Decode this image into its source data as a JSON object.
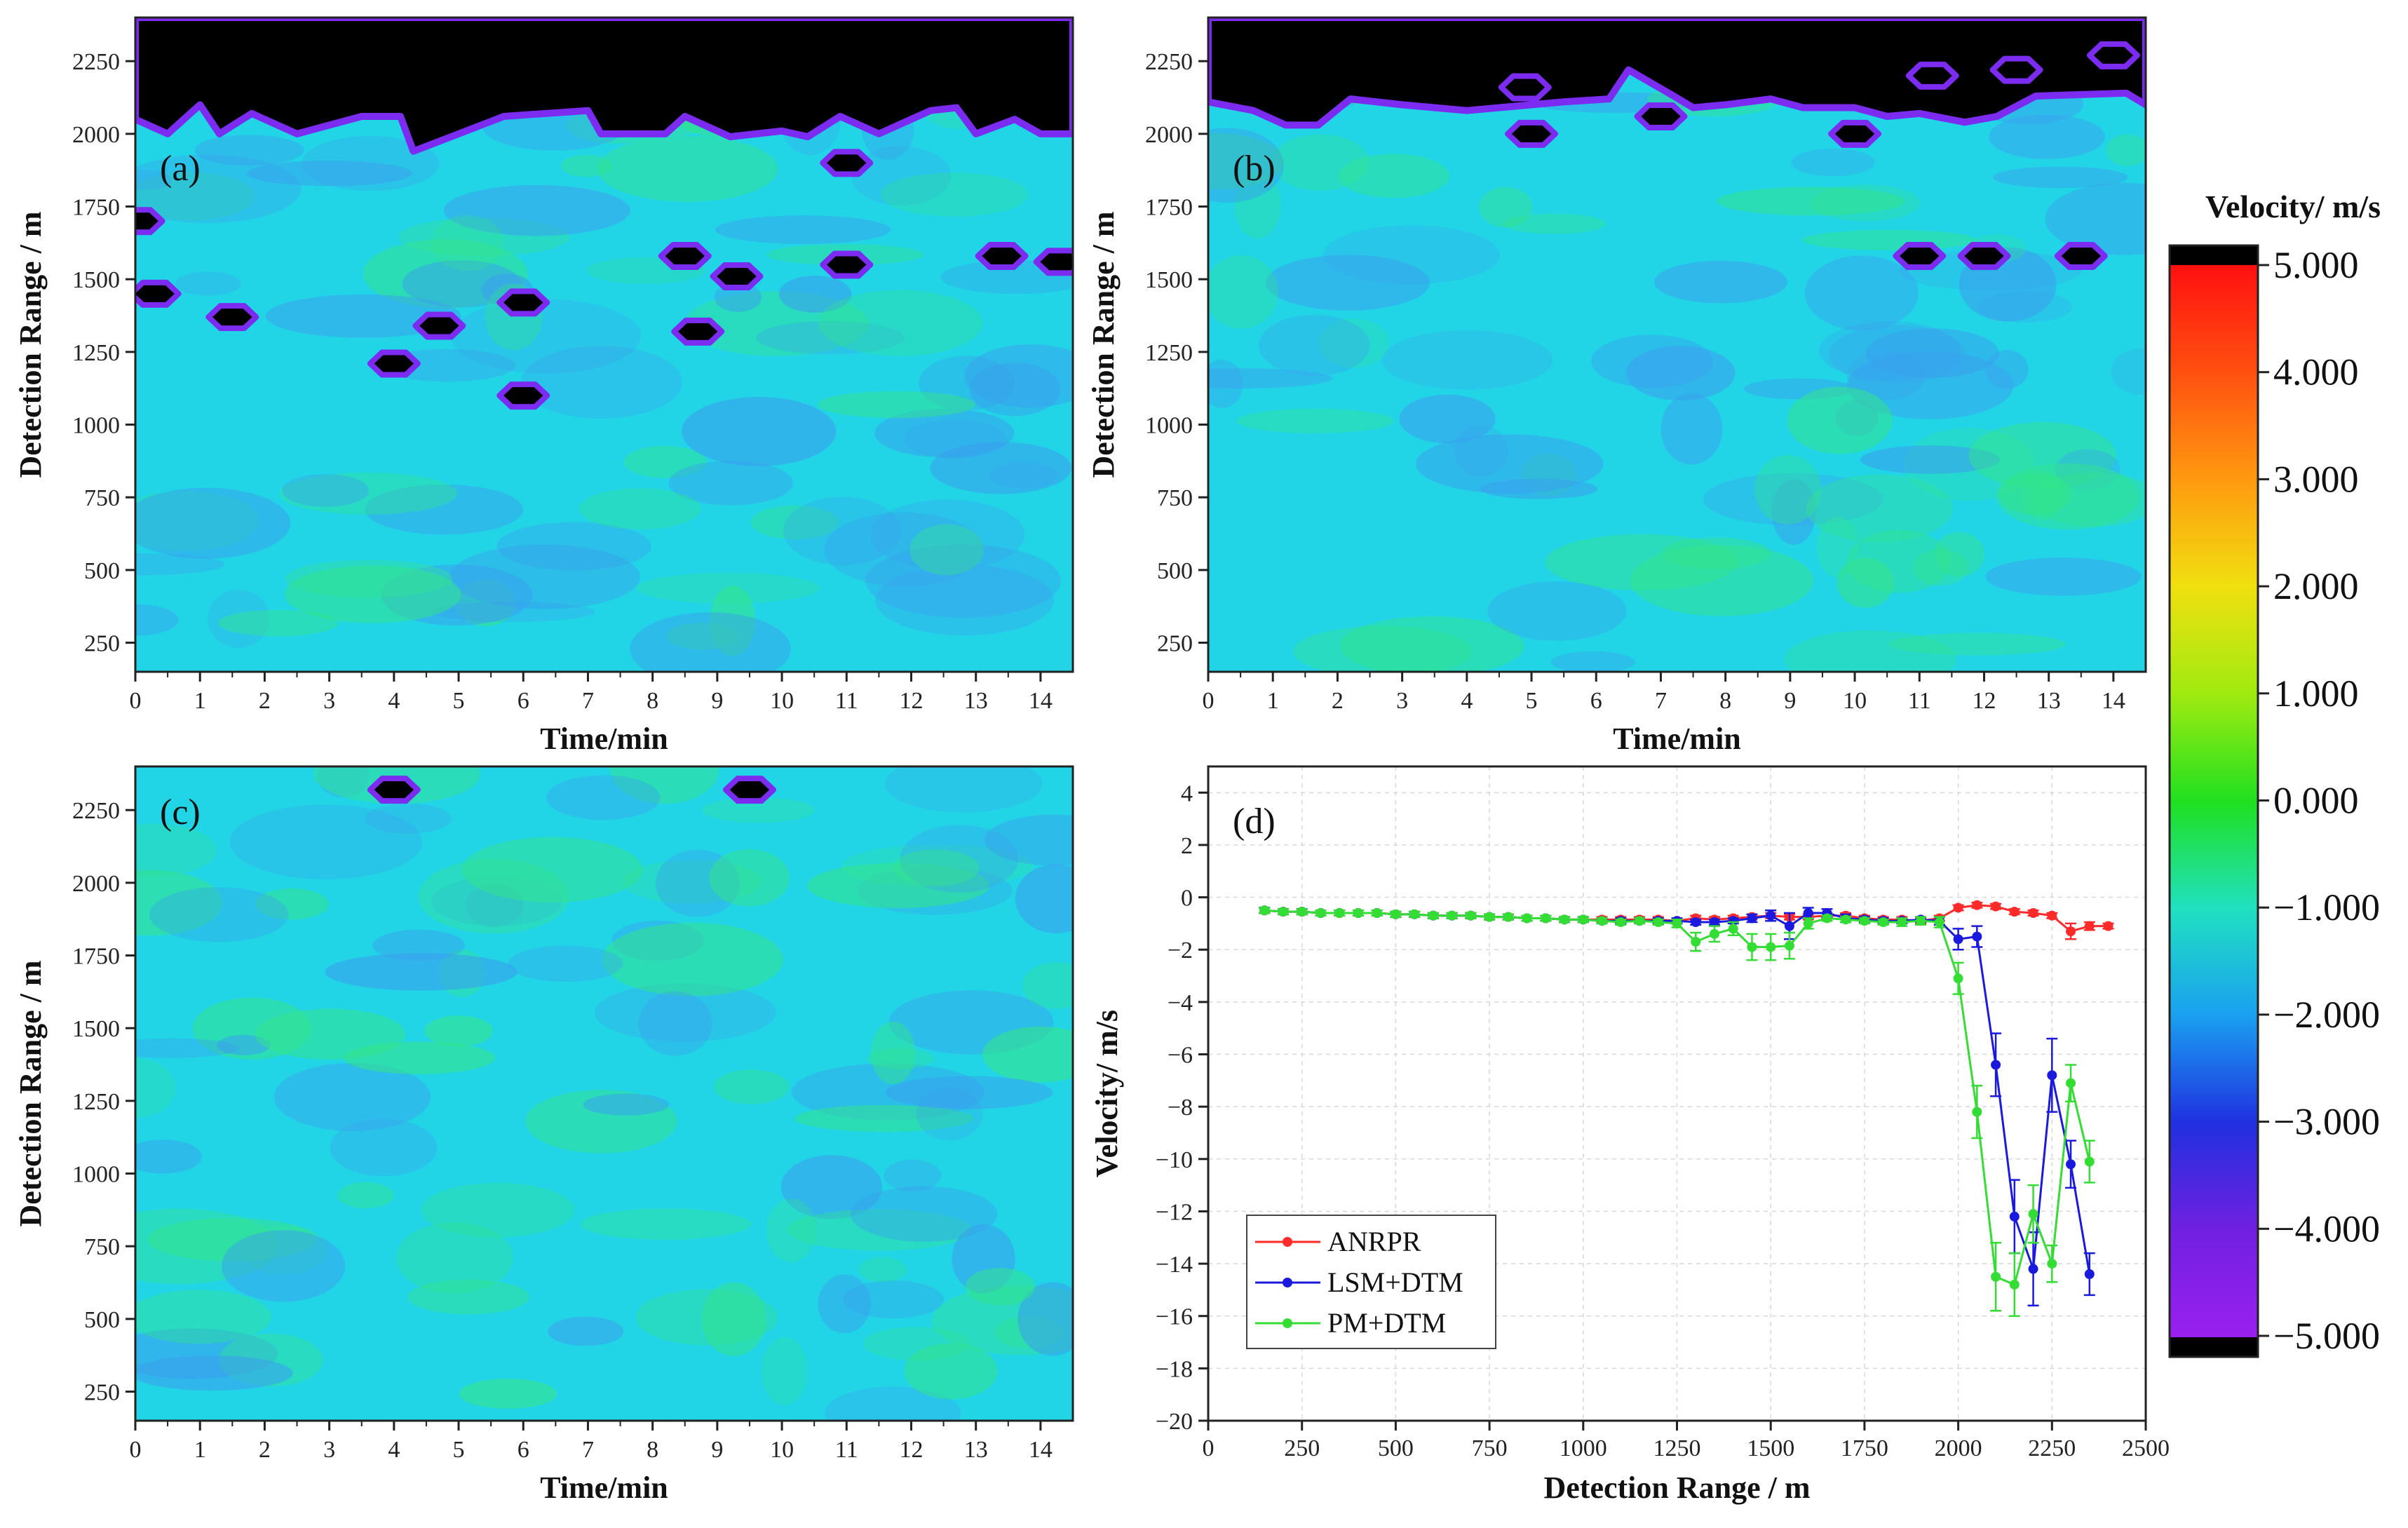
{
  "colors": {
    "void": "#000000",
    "void_edge": "#7b2cf0",
    "field_base": "#22d5e6",
    "field_green": "#33e48a",
    "field_blue": "#3aa0ee",
    "anrpr": "#ff2a2a",
    "lsm": "#1a1adf",
    "pm": "#33dd33",
    "grid": "#d8d8d8"
  },
  "chart_data": [
    {
      "type": "heatmap",
      "panel": "(a)",
      "xlabel": "Time/min",
      "ylabel": "Detection Range / m",
      "xlim": [
        0,
        14.5
      ],
      "ylim": [
        150,
        2400
      ],
      "xticks": [
        "0",
        "1",
        "2",
        "3",
        "4",
        "5",
        "6",
        "7",
        "8",
        "9",
        "10",
        "11",
        "12",
        "13",
        "14"
      ],
      "yticks": [
        "250",
        "500",
        "750",
        "1000",
        "1250",
        "1500",
        "1750",
        "2000",
        "2250"
      ],
      "top_void_boundary": [
        [
          0,
          2050
        ],
        [
          0.5,
          2000
        ],
        [
          1,
          2100
        ],
        [
          1.3,
          2000
        ],
        [
          1.8,
          2070
        ],
        [
          2.5,
          2000
        ],
        [
          3.5,
          2060
        ],
        [
          4.1,
          2060
        ],
        [
          4.3,
          1940
        ],
        [
          5,
          2000
        ],
        [
          5.7,
          2060
        ],
        [
          7,
          2080
        ],
        [
          7.2,
          2000
        ],
        [
          7.7,
          2000
        ],
        [
          8.2,
          2000
        ],
        [
          8.5,
          2060
        ],
        [
          9.2,
          1990
        ],
        [
          10,
          2010
        ],
        [
          10.4,
          1990
        ],
        [
          10.9,
          2060
        ],
        [
          11.5,
          2000
        ],
        [
          12.3,
          2080
        ],
        [
          12.7,
          2090
        ],
        [
          13,
          2000
        ],
        [
          13.6,
          2050
        ],
        [
          14,
          2000
        ],
        [
          14.5,
          2000
        ]
      ],
      "void_patches": [
        [
          0.05,
          1700
        ],
        [
          0.3,
          1450
        ],
        [
          1.5,
          1370
        ],
        [
          4,
          1210
        ],
        [
          4.7,
          1340
        ],
        [
          6,
          1420
        ],
        [
          6,
          1100
        ],
        [
          8.5,
          1580
        ],
        [
          9.3,
          1510
        ],
        [
          8.7,
          1320
        ],
        [
          11,
          1900
        ],
        [
          11,
          1550
        ],
        [
          13.4,
          1580
        ],
        [
          14.3,
          1560
        ]
      ]
    },
    {
      "type": "heatmap",
      "panel": "(b)",
      "xlabel": "Time/min",
      "ylabel": "Detection Range / m",
      "xlim": [
        0,
        14.5
      ],
      "ylim": [
        150,
        2400
      ],
      "xticks": [
        "0",
        "1",
        "2",
        "3",
        "4",
        "5",
        "6",
        "7",
        "8",
        "9",
        "10",
        "11",
        "12",
        "13",
        "14"
      ],
      "yticks": [
        "250",
        "500",
        "750",
        "1000",
        "1250",
        "1500",
        "1750",
        "2000",
        "2250"
      ],
      "top_void_boundary": [
        [
          0,
          2110
        ],
        [
          0.7,
          2080
        ],
        [
          1.2,
          2030
        ],
        [
          1.7,
          2030
        ],
        [
          2.2,
          2120
        ],
        [
          3,
          2100
        ],
        [
          4,
          2080
        ],
        [
          5,
          2100
        ],
        [
          5.5,
          2110
        ],
        [
          6.2,
          2120
        ],
        [
          6.5,
          2220
        ],
        [
          7.2,
          2130
        ],
        [
          7.5,
          2090
        ],
        [
          8,
          2100
        ],
        [
          8.7,
          2120
        ],
        [
          9.2,
          2090
        ],
        [
          10,
          2090
        ],
        [
          10.5,
          2060
        ],
        [
          11,
          2070
        ],
        [
          11.7,
          2040
        ],
        [
          12.2,
          2060
        ],
        [
          12.8,
          2130
        ],
        [
          14.2,
          2140
        ],
        [
          14.5,
          2100
        ]
      ],
      "void_patches": [
        [
          5,
          2000
        ],
        [
          4.9,
          2160
        ],
        [
          7,
          2060
        ],
        [
          10,
          2000
        ],
        [
          11,
          1580
        ],
        [
          12,
          1580
        ],
        [
          13.5,
          1580
        ],
        [
          11.2,
          2200
        ],
        [
          12.5,
          2220
        ],
        [
          14,
          2270
        ]
      ]
    },
    {
      "type": "heatmap",
      "panel": "(c)",
      "xlabel": "Time/min",
      "ylabel": "Detection Range / m",
      "xlim": [
        0,
        14.5
      ],
      "ylim": [
        150,
        2400
      ],
      "xticks": [
        "0",
        "1",
        "2",
        "3",
        "4",
        "5",
        "6",
        "7",
        "8",
        "9",
        "10",
        "11",
        "12",
        "13",
        "14"
      ],
      "yticks": [
        "250",
        "500",
        "750",
        "1000",
        "1250",
        "1500",
        "1750",
        "2000",
        "2250"
      ],
      "top_void_boundary": [],
      "void_patches": [
        [
          4,
          2320
        ],
        [
          9.5,
          2320
        ]
      ]
    },
    {
      "type": "line",
      "panel": "(d)",
      "xlabel": "Detection Range / m",
      "ylabel": "Velocity/ m/s",
      "xlim": [
        0,
        2500
      ],
      "ylim": [
        -20,
        5
      ],
      "xticks": [
        "0",
        "250",
        "500",
        "750",
        "1000",
        "1250",
        "1500",
        "1750",
        "2000",
        "2250",
        "2500"
      ],
      "yticks": [
        "4",
        "2",
        "0",
        "−2",
        "−4",
        "−6",
        "−8",
        "−10",
        "−12",
        "−14",
        "−16",
        "−18",
        "−20"
      ],
      "x": [
        150,
        200,
        250,
        300,
        350,
        400,
        450,
        500,
        550,
        600,
        650,
        700,
        750,
        800,
        850,
        900,
        950,
        1000,
        1050,
        1100,
        1150,
        1200,
        1250,
        1300,
        1350,
        1400,
        1450,
        1500,
        1550,
        1600,
        1650,
        1700,
        1750,
        1800,
        1850,
        1900,
        1950,
        2000,
        2050,
        2100,
        2150,
        2200,
        2250,
        2300,
        2350,
        2400
      ],
      "series": [
        {
          "name": "ANRPR",
          "color": "#ff2a2a",
          "x": [
            150,
            200,
            250,
            300,
            350,
            400,
            450,
            500,
            550,
            600,
            650,
            700,
            750,
            800,
            850,
            900,
            950,
            1000,
            1050,
            1100,
            1150,
            1200,
            1250,
            1300,
            1350,
            1400,
            1450,
            1500,
            1550,
            1600,
            1650,
            1700,
            1750,
            1800,
            1850,
            1900,
            1950,
            2000,
            2050,
            2100,
            2150,
            2200,
            2250,
            2300,
            2350,
            2400
          ],
          "values": [
            -0.5,
            -0.55,
            -0.55,
            -0.6,
            -0.6,
            -0.6,
            -0.6,
            -0.65,
            -0.65,
            -0.7,
            -0.7,
            -0.7,
            -0.75,
            -0.75,
            -0.8,
            -0.8,
            -0.85,
            -0.85,
            -0.85,
            -0.85,
            -0.85,
            -0.85,
            -0.9,
            -0.8,
            -0.85,
            -0.8,
            -0.75,
            -0.7,
            -0.75,
            -0.75,
            -0.7,
            -0.7,
            -0.8,
            -0.85,
            -0.85,
            -0.9,
            -0.8,
            -0.4,
            -0.3,
            -0.35,
            -0.55,
            -0.6,
            -0.7,
            -1.3,
            -1.1,
            -1.1
          ],
          "errors": [
            0.1,
            0.1,
            0.1,
            0.1,
            0.1,
            0.1,
            0.1,
            0.1,
            0.1,
            0.1,
            0.1,
            0.1,
            0.1,
            0.1,
            0.1,
            0.1,
            0.1,
            0.1,
            0.1,
            0.1,
            0.1,
            0.1,
            0.1,
            0.1,
            0.1,
            0.1,
            0.1,
            0.1,
            0.1,
            0.1,
            0.1,
            0.1,
            0.1,
            0.1,
            0.1,
            0.1,
            0.1,
            0.1,
            0.1,
            0.1,
            0.1,
            0.1,
            0.1,
            0.3,
            0.15,
            0.1
          ]
        },
        {
          "name": "LSM+DTM",
          "color": "#1a1adf",
          "x": [
            150,
            200,
            250,
            300,
            350,
            400,
            450,
            500,
            550,
            600,
            650,
            700,
            750,
            800,
            850,
            900,
            950,
            1000,
            1050,
            1100,
            1150,
            1200,
            1250,
            1300,
            1350,
            1400,
            1450,
            1500,
            1550,
            1600,
            1650,
            1700,
            1750,
            1800,
            1850,
            1900,
            1950,
            2000,
            2050,
            2100,
            2150,
            2200,
            2250,
            2300,
            2350
          ],
          "values": [
            -0.5,
            -0.55,
            -0.55,
            -0.6,
            -0.6,
            -0.6,
            -0.6,
            -0.65,
            -0.65,
            -0.7,
            -0.7,
            -0.7,
            -0.75,
            -0.75,
            -0.8,
            -0.8,
            -0.85,
            -0.85,
            -0.9,
            -0.9,
            -0.9,
            -0.9,
            -0.9,
            -0.95,
            -0.95,
            -0.9,
            -0.8,
            -0.7,
            -1.1,
            -0.6,
            -0.6,
            -0.8,
            -0.85,
            -0.9,
            -0.9,
            -0.85,
            -0.9,
            -1.6,
            -1.5,
            -6.4,
            -12.2,
            -14.2,
            -6.8,
            -10.2,
            -14.4
          ],
          "errors": [
            0.1,
            0.1,
            0.1,
            0.1,
            0.1,
            0.1,
            0.1,
            0.1,
            0.1,
            0.1,
            0.1,
            0.1,
            0.1,
            0.1,
            0.1,
            0.1,
            0.1,
            0.1,
            0.1,
            0.1,
            0.1,
            0.1,
            0.1,
            0.1,
            0.1,
            0.1,
            0.15,
            0.2,
            0.5,
            0.2,
            0.15,
            0.15,
            0.1,
            0.1,
            0.1,
            0.1,
            0.15,
            0.4,
            0.4,
            1.2,
            1.4,
            1.4,
            1.4,
            0.9,
            0.8
          ]
        },
        {
          "name": "PM+DTM",
          "color": "#33dd33",
          "x": [
            150,
            200,
            250,
            300,
            350,
            400,
            450,
            500,
            550,
            600,
            650,
            700,
            750,
            800,
            850,
            900,
            950,
            1000,
            1050,
            1100,
            1150,
            1200,
            1250,
            1300,
            1350,
            1400,
            1450,
            1500,
            1550,
            1600,
            1650,
            1700,
            1750,
            1800,
            1850,
            1900,
            1950,
            2000,
            2050,
            2100,
            2150,
            2200,
            2250,
            2300,
            2350
          ],
          "values": [
            -0.5,
            -0.55,
            -0.55,
            -0.6,
            -0.6,
            -0.6,
            -0.6,
            -0.65,
            -0.65,
            -0.7,
            -0.7,
            -0.7,
            -0.75,
            -0.75,
            -0.8,
            -0.8,
            -0.85,
            -0.85,
            -0.9,
            -0.95,
            -0.9,
            -0.95,
            -1.0,
            -1.7,
            -1.4,
            -1.2,
            -1.9,
            -1.9,
            -1.85,
            -1.0,
            -0.8,
            -0.85,
            -0.9,
            -0.95,
            -0.95,
            -0.9,
            -0.95,
            -3.1,
            -8.2,
            -14.5,
            -14.8,
            -12.1,
            -14.0,
            -7.1,
            -10.1
          ],
          "errors": [
            0.1,
            0.1,
            0.1,
            0.1,
            0.1,
            0.1,
            0.1,
            0.1,
            0.1,
            0.1,
            0.1,
            0.1,
            0.1,
            0.1,
            0.1,
            0.1,
            0.1,
            0.1,
            0.1,
            0.1,
            0.1,
            0.1,
            0.15,
            0.35,
            0.3,
            0.25,
            0.5,
            0.5,
            0.5,
            0.2,
            0.1,
            0.1,
            0.1,
            0.1,
            0.15,
            0.15,
            0.2,
            0.6,
            1.0,
            1.3,
            1.2,
            1.1,
            0.7,
            0.7,
            0.8
          ]
        }
      ],
      "legend": "bottom-left"
    },
    {
      "type": "colorbar",
      "title": "Velocity/ m/s",
      "range": [
        -5,
        5
      ],
      "ticks": [
        "5.000",
        "4.000",
        "3.000",
        "2.000",
        "1.000",
        "0.000",
        "−1.000",
        "−2.000",
        "−3.000",
        "−4.000",
        "−5.000"
      ],
      "stops": [
        "#ff1010",
        "#ff5010",
        "#ff9a10",
        "#f0e010",
        "#a0ea10",
        "#20e020",
        "#20e0c0",
        "#1aa0f0",
        "#2030e0",
        "#7020e0",
        "#9a20f0"
      ]
    }
  ]
}
